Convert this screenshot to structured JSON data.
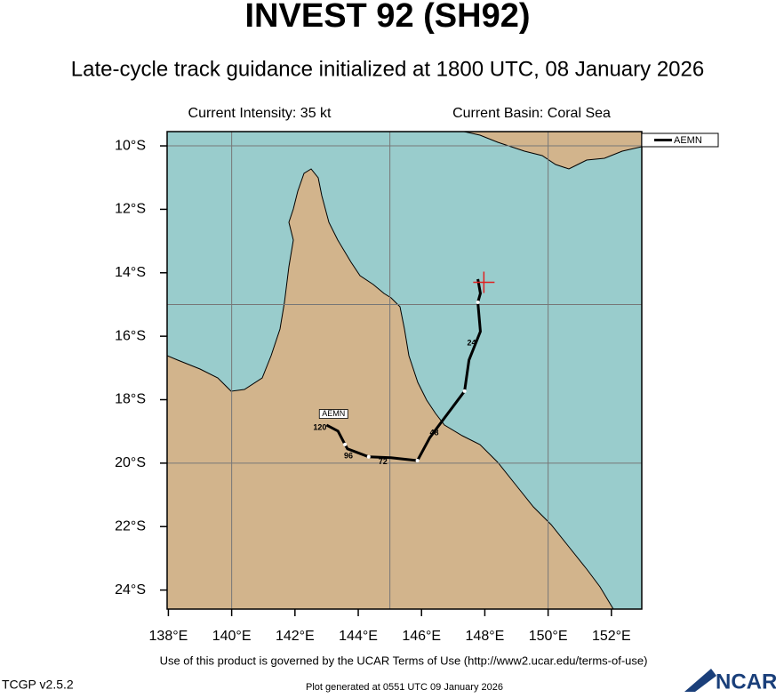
{
  "title": "INVEST 92 (SH92)",
  "subtitle": "Late-cycle track guidance initialized at 1800 UTC, 08 January 2026",
  "info": {
    "intensity": "Current Intensity: 35 kt",
    "basin": "Current Basin: Coral Sea"
  },
  "chart_data": {
    "type": "track",
    "xlim": [
      137.96,
      152.96
    ],
    "ylim": [
      -24.6,
      -9.55
    ],
    "xticks": [
      {
        "value": 138,
        "label": "138°E"
      },
      {
        "value": 140,
        "label": "140°E"
      },
      {
        "value": 142,
        "label": "142°E"
      },
      {
        "value": 144,
        "label": "144°E"
      },
      {
        "value": 146,
        "label": "146°E"
      },
      {
        "value": 148,
        "label": "148°E"
      },
      {
        "value": 150,
        "label": "150°E"
      },
      {
        "value": 152,
        "label": "152°E"
      }
    ],
    "yticks": [
      {
        "value": -10,
        "label": "10°S"
      },
      {
        "value": -12,
        "label": "12°S"
      },
      {
        "value": -14,
        "label": "14°S"
      },
      {
        "value": -16,
        "label": "16°S"
      },
      {
        "value": -18,
        "label": "18°S"
      },
      {
        "value": -20,
        "label": "20°S"
      },
      {
        "value": -22,
        "label": "22°S"
      },
      {
        "value": -24,
        "label": "24°S"
      }
    ],
    "grid_x": [
      140,
      145,
      150
    ],
    "grid_y": [
      -10,
      -15,
      -20
    ],
    "series": [
      {
        "name": "AEMN",
        "color": "#000000",
        "x": [
          147.78,
          147.86,
          147.78,
          147.86,
          147.5,
          147.36,
          146.52,
          146.26,
          145.87,
          145.03,
          144.33,
          143.66,
          143.58,
          143.36,
          143.0
        ],
        "values": [
          -14.2,
          -14.65,
          -14.93,
          -15.85,
          -16.75,
          -17.73,
          -18.85,
          -19.2,
          -19.92,
          -19.83,
          -19.8,
          -19.55,
          -19.41,
          -18.99,
          -18.8
        ]
      }
    ],
    "dots": {
      "x": [
        147.78,
        147.36,
        145.87,
        144.33,
        143.58
      ],
      "values": [
        -14.93,
        -17.73,
        -19.92,
        -19.8,
        -19.41
      ]
    },
    "hour_labels": [
      {
        "value": 24,
        "x": 147.58,
        "y": -16.22
      },
      {
        "value": 48,
        "x": 146.4,
        "y": -19.05
      },
      {
        "value": 72,
        "x": 144.78,
        "y": -19.97
      },
      {
        "value": 96,
        "x": 143.69,
        "y": -19.78
      },
      {
        "value": 120,
        "x": 142.79,
        "y": -18.88
      }
    ],
    "end_label": {
      "x": 143.22,
      "y": -18.45
    },
    "current_position": {
      "x": 147.97,
      "y": -14.3,
      "color": "#e02020"
    },
    "legend": "top-right"
  },
  "footer": {
    "terms": "Use of this product is governed by the UCAR Terms of Use (http://www2.ucar.edu/terms-of-use)",
    "version": "TCGP v2.5.2",
    "generated": "Plot generated at 0551 UTC   09 January 2026",
    "logo": "NCAR"
  }
}
